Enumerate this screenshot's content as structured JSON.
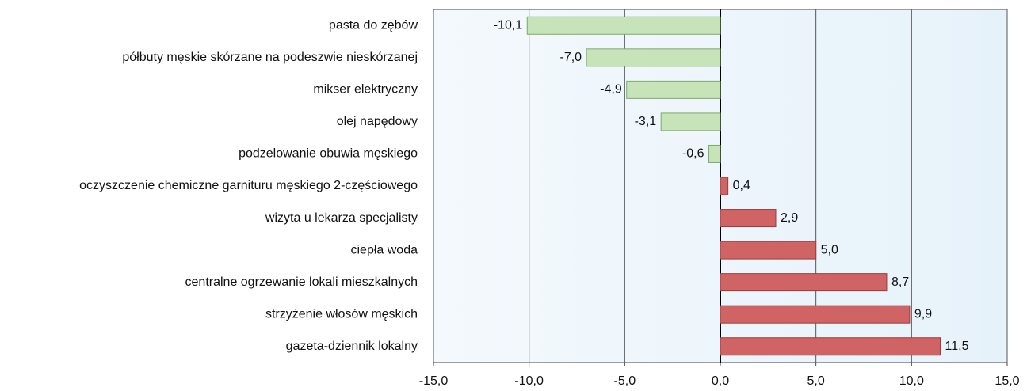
{
  "chart_data": {
    "type": "hbar",
    "categories": [
      "pasta do zębów",
      "półbuty męskie skórzane na podeszwie nieskórzanej",
      "mikser elektryczny",
      "olej napędowy",
      "podzelowanie obuwia męskiego",
      "oczyszczenie chemiczne garnituru męskiego 2-częściowego",
      "wizyta u lekarza specjalisty",
      "ciepła woda",
      "centralne ogrzewanie lokali mieszkalnych",
      "strzyżenie włosów męskich",
      "gazeta-dziennik lokalny"
    ],
    "values": [
      -10.1,
      -7.0,
      -4.9,
      -3.1,
      -0.6,
      0.4,
      2.9,
      5.0,
      8.7,
      9.9,
      11.5
    ],
    "value_labels": [
      "-10,1",
      "-7,0",
      "-4,9",
      "-3,1",
      "-0,6",
      "0,4",
      "2,9",
      "5,0",
      "8,7",
      "9,9",
      "11,5"
    ],
    "negative_color": "#c6e4b8",
    "positive_color": "#d06464",
    "xlim": [
      -15,
      15
    ],
    "xticks": [
      {
        "value": -15,
        "label": "-15,0"
      },
      {
        "value": -10,
        "label": "-10,0"
      },
      {
        "value": -5,
        "label": "-5,0"
      },
      {
        "value": 0,
        "label": "0,0"
      },
      {
        "value": 5,
        "label": "5,0"
      },
      {
        "value": 10,
        "label": "10,0"
      },
      {
        "value": 15,
        "label": "15,0"
      }
    ],
    "grid": true
  }
}
